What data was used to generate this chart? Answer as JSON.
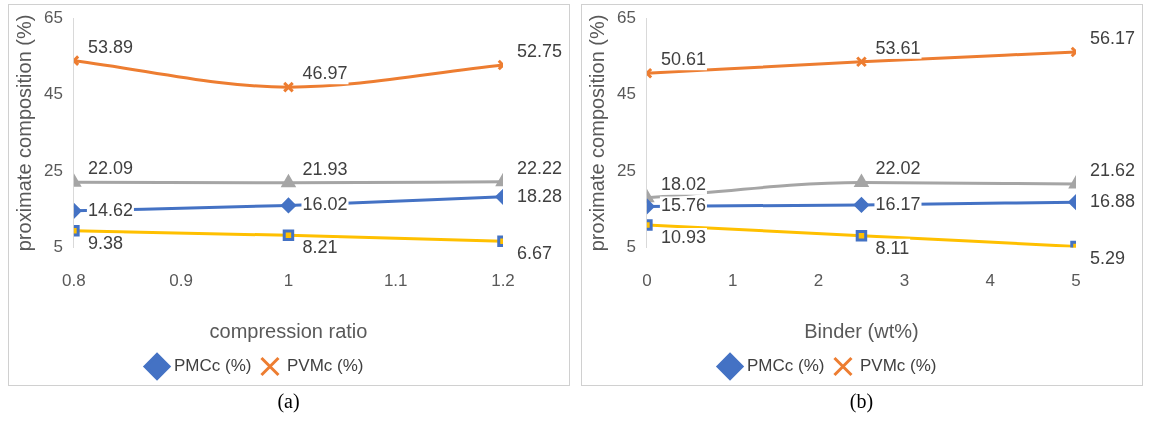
{
  "chart_data": [
    {
      "type": "line",
      "xlabel": "compression ratio",
      "ylabel": "proximate composition (%)",
      "x": [
        0.8,
        1,
        1.2
      ],
      "xlim": [
        0.8,
        1.2
      ],
      "xticks": [
        0.8,
        0.9,
        1,
        1.1,
        1.2
      ],
      "ylim": [
        5,
        65
      ],
      "yticks": [
        5,
        25,
        45,
        65
      ],
      "grid": false,
      "legend": "bottom",
      "data_labels": true,
      "annotations": [
        "(a)"
      ],
      "series": [
        {
          "name": "PMCc (%)",
          "color": "#4472c4",
          "marker": "diamond",
          "values": [
            14.62,
            16.02,
            18.28
          ]
        },
        {
          "name": "PVMc (%)",
          "color": "#ed7d31",
          "marker": "cross",
          "values": [
            53.89,
            46.97,
            52.75
          ]
        },
        {
          "color": "#a5a5a5",
          "marker": "triangle",
          "values": [
            22.09,
            21.93,
            22.22
          ]
        },
        {
          "color": "#ffc000",
          "marker": "square",
          "values": [
            9.38,
            8.21,
            6.67
          ]
        }
      ]
    },
    {
      "type": "line",
      "xlabel": "Binder (wt%)",
      "ylabel": "proximate composition (%)",
      "x": [
        0,
        2.5,
        5
      ],
      "xlim": [
        0,
        5
      ],
      "xticks": [
        0,
        1,
        2,
        3,
        4,
        5
      ],
      "ylim": [
        5,
        65
      ],
      "yticks": [
        5,
        25,
        45,
        65
      ],
      "grid": false,
      "legend": "bottom",
      "data_labels": true,
      "annotations": [
        "(b)"
      ],
      "series": [
        {
          "name": "PMCc (%)",
          "color": "#4472c4",
          "marker": "diamond",
          "values": [
            15.76,
            16.17,
            16.88
          ]
        },
        {
          "name": "PVMc (%)",
          "color": "#ed7d31",
          "marker": "cross",
          "values": [
            50.61,
            53.61,
            56.17
          ]
        },
        {
          "color": "#a5a5a5",
          "marker": "triangle",
          "values": [
            18.02,
            22.02,
            21.62
          ]
        },
        {
          "color": "#ffc000",
          "marker": "square",
          "values": [
            10.93,
            8.11,
            5.29
          ]
        }
      ]
    }
  ]
}
